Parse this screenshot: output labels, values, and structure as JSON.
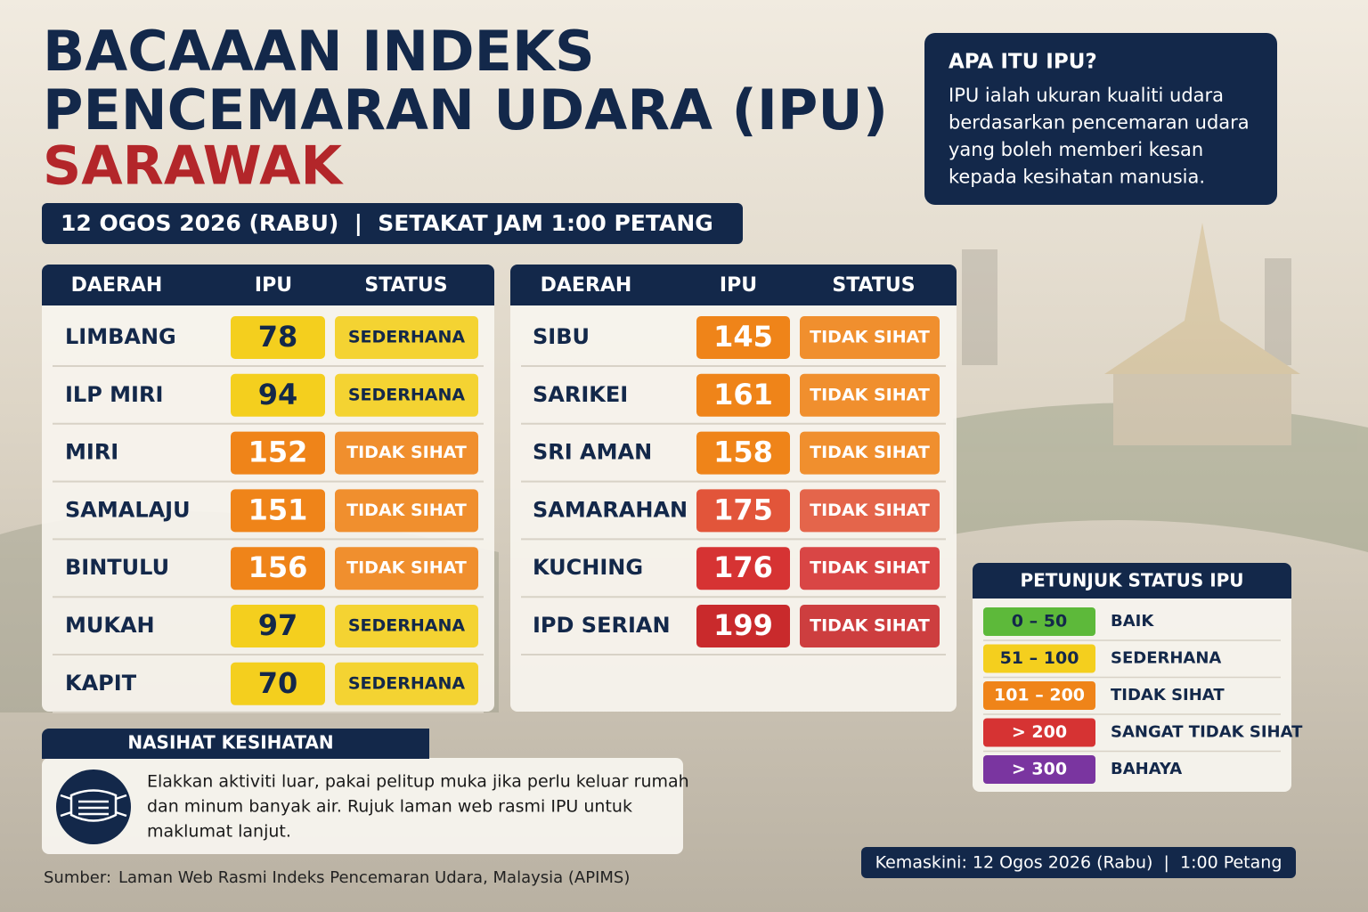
{
  "header": {
    "title_lines": [
      "BACAAAN INDEKS",
      "PENCEMARAN UDARA (IPU)"
    ],
    "region": "SARAWAK",
    "date_bar": "12 OGOS 2026 (RABU)  |  SETAKAT JAM 1:00 PETANG"
  },
  "info": {
    "title": "APA ITU IPU?",
    "lines": [
      "IPU ialah ukuran kualiti udara",
      "berdasarkan pencemaran udara",
      "yang boleh memberi kesan",
      "kepada kesihatan manusia."
    ]
  },
  "tables": [
    {
      "columns": [
        "DAERAH",
        "IPU",
        "STATUS"
      ],
      "rows": [
        {
          "district": "LIMBANG",
          "ipu": 78,
          "status": "SEDERHANA",
          "color": "#f4cf1e"
        },
        {
          "district": "ILP MIRI",
          "ipu": 94,
          "status": "SEDERHANA",
          "color": "#f4cf1e"
        },
        {
          "district": "MIRI",
          "ipu": 152,
          "status": "TIDAK SIHAT",
          "color": "#ef8419"
        },
        {
          "district": "SAMALAJU",
          "ipu": 151,
          "status": "TIDAK SIHAT",
          "color": "#ef8419"
        },
        {
          "district": "BINTULU",
          "ipu": 156,
          "status": "TIDAK SIHAT",
          "color": "#ef8419"
        },
        {
          "district": "MUKAH",
          "ipu": 97,
          "status": "SEDERHANA",
          "color": "#f4cf1e"
        },
        {
          "district": "KAPIT",
          "ipu": 70,
          "status": "SEDERHANA",
          "color": "#f4cf1e"
        }
      ]
    },
    {
      "columns": [
        "DAERAH",
        "IPU",
        "STATUS"
      ],
      "rows": [
        {
          "district": "SIBU",
          "ipu": 145,
          "status": "TIDAK SIHAT",
          "color": "#ef8419"
        },
        {
          "district": "SARIKEI",
          "ipu": 161,
          "status": "TIDAK SIHAT",
          "color": "#ef8419"
        },
        {
          "district": "SRI AMAN",
          "ipu": 158,
          "status": "TIDAK SIHAT",
          "color": "#ef8419"
        },
        {
          "district": "SAMARAHAN",
          "ipu": 175,
          "status": "TIDAK SIHAT",
          "color": "#e2553a"
        },
        {
          "district": "KUCHING",
          "ipu": 176,
          "status": "TIDAK SIHAT",
          "color": "#d63333"
        },
        {
          "district": "IPD SERIAN",
          "ipu": 199,
          "status": "TIDAK SIHAT",
          "color": "#c92a2c"
        }
      ]
    }
  ],
  "legend": {
    "title": "PETUNJUK STATUS IPU",
    "items": [
      {
        "range": "0 – 50",
        "status": "BAIK",
        "color": "#5db93a"
      },
      {
        "range": "51 – 100",
        "status": "SEDERHANA",
        "color": "#f4cf1e"
      },
      {
        "range": "101 – 200",
        "status": "TIDAK SIHAT",
        "color": "#ef8419"
      },
      {
        "range": "> 200",
        "status": "SANGAT TIDAK SIHAT",
        "color": "#d63333"
      },
      {
        "range": "> 300",
        "status": "BAHAYA",
        "color": "#7a35a0"
      }
    ]
  },
  "advice": {
    "title": "NASIHAT KESIHATAN",
    "lines": [
      "Elakkan aktiviti luar, pakai pelitup muka jika perlu keluar rumah",
      "dan minum banyak air. Rujuk laman web rasmi IPU untuk",
      "maklumat lanjut."
    ]
  },
  "source": {
    "label": "Sumber:",
    "text": "Laman Web Rasmi Indeks Pencemaran Udara, Malaysia (APIMS)"
  },
  "updated": "Kemaskini: 12 Ogos 2026 (Rabu)  |  1:00 Petang"
}
